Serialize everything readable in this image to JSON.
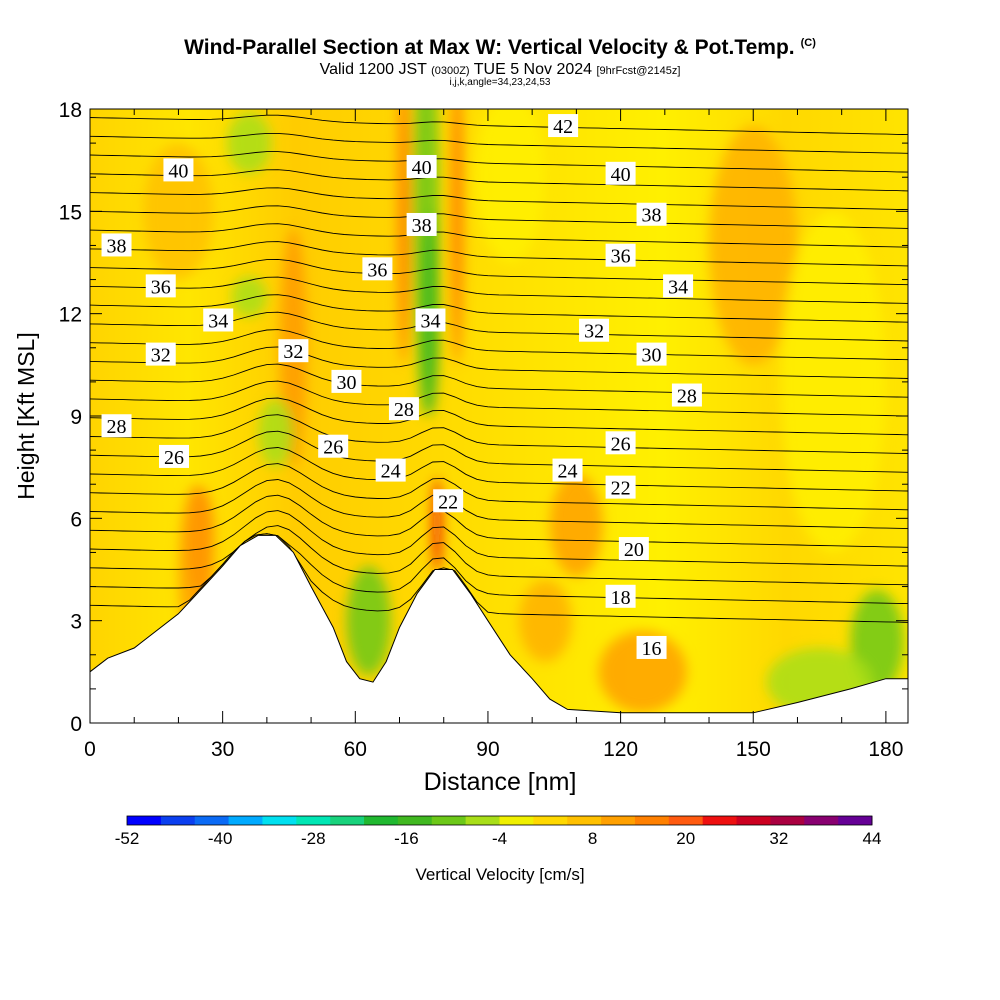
{
  "header": {
    "title": "Wind-Parallel Section at Max W: Vertical Velocity & Pot.Temp.",
    "title_mark": "(C)",
    "subtitle_main": "Valid 1200 JST",
    "subtitle_utc": "(0300Z)",
    "subtitle_date": "TUE 5 Nov 2024",
    "subtitle_fcst": "[9hrFcst@2145z]",
    "params": "i,j,k,angle=34,23,24,53"
  },
  "chart_data": {
    "type": "heatmap",
    "xlabel": "Distance [nm]",
    "ylabel": "Height [Kft MSL]",
    "xlim": [
      0,
      185
    ],
    "ylim": [
      0,
      18
    ],
    "x_ticks": [
      0,
      30,
      60,
      90,
      120,
      150,
      180
    ],
    "y_ticks": [
      0,
      3,
      6,
      9,
      12,
      15,
      18
    ],
    "terrain": [
      [
        0,
        1.5
      ],
      [
        4,
        1.9
      ],
      [
        10,
        2.2
      ],
      [
        15,
        2.7
      ],
      [
        20,
        3.2
      ],
      [
        25,
        3.9
      ],
      [
        30,
        4.6
      ],
      [
        34,
        5.2
      ],
      [
        38,
        5.5
      ],
      [
        42,
        5.5
      ],
      [
        46,
        5.0
      ],
      [
        50,
        4.0
      ],
      [
        55,
        2.8
      ],
      [
        58,
        1.8
      ],
      [
        61,
        1.3
      ],
      [
        64,
        1.2
      ],
      [
        67,
        1.8
      ],
      [
        70,
        2.8
      ],
      [
        74,
        3.8
      ],
      [
        78,
        4.5
      ],
      [
        82,
        4.5
      ],
      [
        86,
        3.8
      ],
      [
        90,
        3.0
      ],
      [
        95,
        2.0
      ],
      [
        100,
        1.3
      ],
      [
        104,
        0.7
      ],
      [
        108,
        0.4
      ],
      [
        120,
        0.3
      ],
      [
        130,
        0.3
      ],
      [
        150,
        0.3
      ],
      [
        160,
        0.6
      ],
      [
        172,
        1.0
      ],
      [
        180,
        1.3
      ],
      [
        185,
        1.3
      ]
    ],
    "theta_labels": [
      {
        "x": 20,
        "y": 16.2,
        "value": "40"
      },
      {
        "x": 75,
        "y": 16.3,
        "value": "40"
      },
      {
        "x": 107,
        "y": 17.5,
        "value": "42"
      },
      {
        "x": 120,
        "y": 16.1,
        "value": "40"
      },
      {
        "x": 6,
        "y": 14.0,
        "value": "38"
      },
      {
        "x": 75,
        "y": 14.6,
        "value": "38"
      },
      {
        "x": 127,
        "y": 14.9,
        "value": "38"
      },
      {
        "x": 16,
        "y": 12.8,
        "value": "36"
      },
      {
        "x": 65,
        "y": 13.3,
        "value": "36"
      },
      {
        "x": 120,
        "y": 13.7,
        "value": "36"
      },
      {
        "x": 133,
        "y": 12.8,
        "value": "34"
      },
      {
        "x": 29,
        "y": 11.8,
        "value": "34"
      },
      {
        "x": 77,
        "y": 11.8,
        "value": "34"
      },
      {
        "x": 114,
        "y": 11.5,
        "value": "32"
      },
      {
        "x": 16,
        "y": 10.8,
        "value": "32"
      },
      {
        "x": 46,
        "y": 10.9,
        "value": "32"
      },
      {
        "x": 58,
        "y": 10.0,
        "value": "30"
      },
      {
        "x": 127,
        "y": 10.8,
        "value": "30"
      },
      {
        "x": 135,
        "y": 9.6,
        "value": "28"
      },
      {
        "x": 6,
        "y": 8.7,
        "value": "28"
      },
      {
        "x": 71,
        "y": 9.2,
        "value": "28"
      },
      {
        "x": 19,
        "y": 7.8,
        "value": "26"
      },
      {
        "x": 55,
        "y": 8.1,
        "value": "26"
      },
      {
        "x": 120,
        "y": 8.2,
        "value": "26"
      },
      {
        "x": 108,
        "y": 7.4,
        "value": "24"
      },
      {
        "x": 68,
        "y": 7.4,
        "value": "24"
      },
      {
        "x": 81,
        "y": 6.5,
        "value": "22"
      },
      {
        "x": 120,
        "y": 6.9,
        "value": "22"
      },
      {
        "x": 123,
        "y": 5.1,
        "value": "20"
      },
      {
        "x": 120,
        "y": 3.7,
        "value": "18"
      },
      {
        "x": 127,
        "y": 2.2,
        "value": "16"
      }
    ],
    "w_highlights": [
      {
        "x": 76,
        "value": "-16",
        "note": "green updraft/downdraft band"
      },
      {
        "x": 66,
        "value": "-16"
      },
      {
        "x": 25,
        "value": "20"
      },
      {
        "x": 78,
        "value": "32"
      }
    ],
    "colorbar": {
      "title": "Vertical Velocity [cm/s]",
      "tick_labels": [
        "-52",
        "-40",
        "-28",
        "-16",
        "-4",
        "8",
        "20",
        "32",
        "44"
      ],
      "colors": [
        "#0000ff",
        "#0a3ff0",
        "#0a6af5",
        "#00aaff",
        "#00e0f0",
        "#00e6b4",
        "#18d27c",
        "#20b830",
        "#40b820",
        "#6cc818",
        "#a8de18",
        "#f0f000",
        "#ffd800",
        "#ffc000",
        "#ffa000",
        "#ff8000",
        "#ff5a10",
        "#ee1010",
        "#cc0020",
        "#aa0040",
        "#880070",
        "#650095"
      ]
    }
  }
}
